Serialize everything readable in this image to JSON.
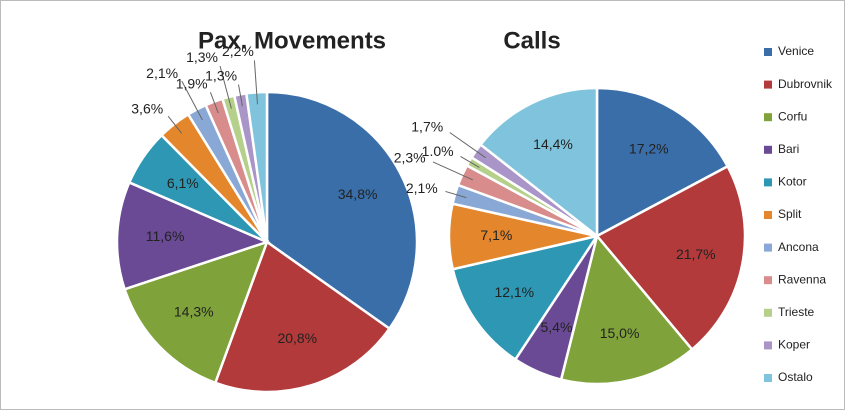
{
  "chart_data": [
    {
      "type": "pie",
      "title": "Pax. Movements",
      "categories": [
        "Venice",
        "Dubrovnik",
        "Corfu",
        "Bari",
        "Kotor",
        "Split",
        "Ancona",
        "Ravenna",
        "Trieste",
        "Koper",
        "Ostalo"
      ],
      "values": [
        34.8,
        20.8,
        14.3,
        11.6,
        6.1,
        3.6,
        2.1,
        1.9,
        1.3,
        1.3,
        2.2
      ],
      "value_labels": [
        "34,8%",
        "20,8%",
        "14,3%",
        "11,6%",
        "6,1%",
        "3,6%",
        "2,1%",
        "1,9%",
        "1,3%",
        "1,3%",
        "2,2%"
      ],
      "colors": [
        "#3a6ea8",
        "#b23a3a",
        "#7fa33a",
        "#6a4a94",
        "#2e98b4",
        "#e4862c",
        "#8aa8d6",
        "#d98c8c",
        "#b5d08a",
        "#a995c7",
        "#7fc4dc"
      ],
      "legend": "right"
    },
    {
      "type": "pie",
      "title": "Calls",
      "categories": [
        "Venice",
        "Dubrovnik",
        "Corfu",
        "Bari",
        "Kotor",
        "Split",
        "Ancona",
        "Ravenna",
        "Trieste",
        "Koper",
        "Ostalo"
      ],
      "values": [
        17.2,
        21.7,
        15.0,
        5.4,
        12.1,
        7.1,
        2.1,
        2.3,
        1.0,
        1.7,
        14.4
      ],
      "value_labels": [
        "17,2%",
        "21,7%",
        "15,0%",
        "5,4%",
        "12,1%",
        "7,1%",
        "2,1%",
        "2,3%",
        "1.0%",
        "1,7%",
        "14,4%"
      ],
      "colors": [
        "#3a6ea8",
        "#b23a3a",
        "#7fa33a",
        "#6a4a94",
        "#2e98b4",
        "#e4862c",
        "#8aa8d6",
        "#d98c8c",
        "#b5d08a",
        "#a995c7",
        "#7fc4dc"
      ]
    }
  ]
}
